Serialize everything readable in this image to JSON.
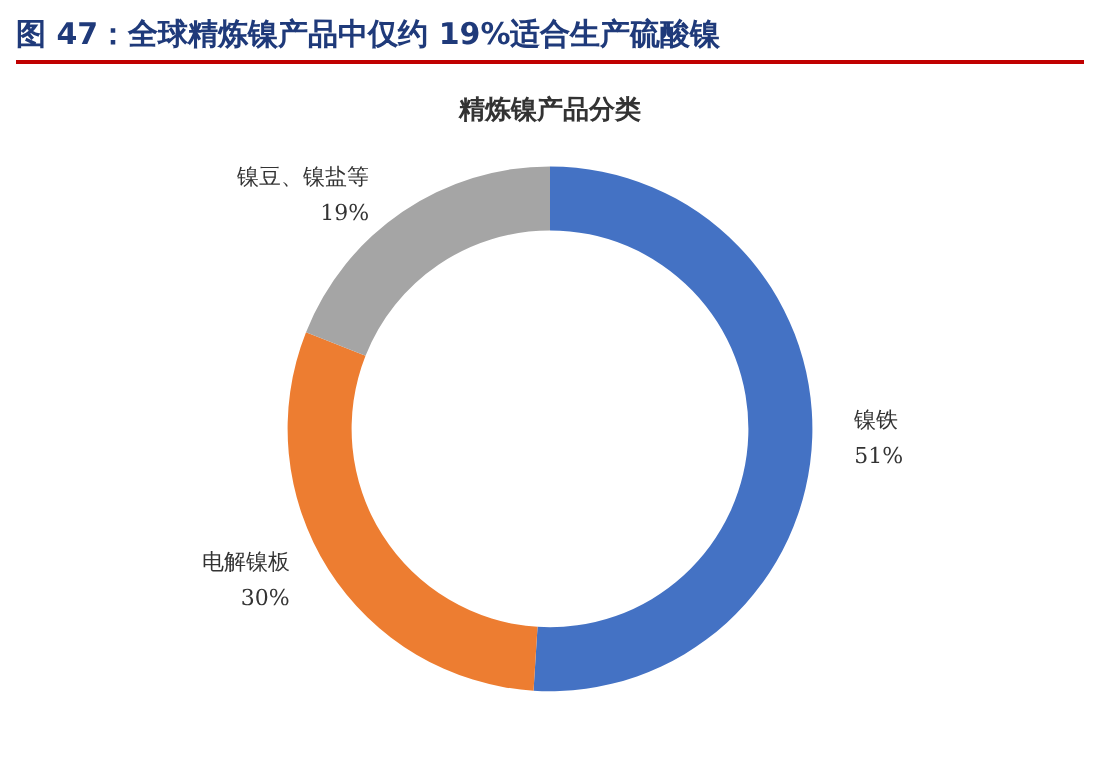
{
  "chart_data": {
    "type": "donut",
    "title": "图 47：全球精炼镍产品中仅约 19%适合生产硫酸镍",
    "subtitle": "精炼镍产品分类",
    "categories": [
      "镍铁",
      "电解镍板",
      "镍豆、镍盐等"
    ],
    "values": [
      51,
      30,
      19
    ],
    "colors": [
      "#4472c4",
      "#ed7d31",
      "#a5a5a5"
    ],
    "value_labels": [
      "51%",
      "30%",
      "19%"
    ],
    "legend": false
  }
}
